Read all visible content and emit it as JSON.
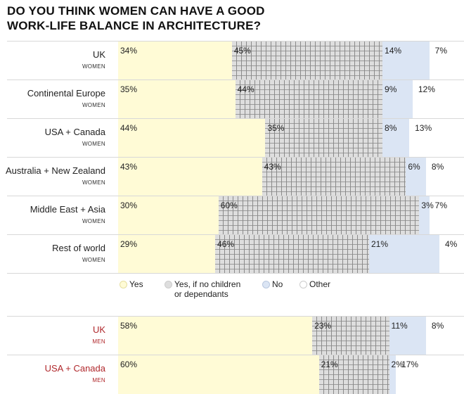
{
  "title_lines": [
    "DO YOU THINK WOMEN CAN HAVE A GOOD",
    "WORK-LIFE BALANCE IN ARCHITECTURE?"
  ],
  "chart_data": {
    "type": "bar",
    "orientation": "horizontal",
    "stacked": true,
    "title": "DO YOU THINK WOMEN CAN HAVE A GOOD WORK-LIFE BALANCE IN ARCHITECTURE?",
    "xlim": [
      0,
      100
    ],
    "legend": {
      "position": "bottom",
      "entries": [
        "Yes",
        "Yes, if no children or dependants",
        "No",
        "Other"
      ]
    },
    "series_names": [
      "Yes",
      "Yes, if no children or dependants",
      "No",
      "Other"
    ],
    "colors": {
      "yes": "#fffbd6",
      "conditional": "#dedede",
      "no": "#dbe5f4",
      "other": "#ffffff",
      "men_label": "#b0282c"
    },
    "groups": [
      {
        "rows": [
          {
            "category": "UK",
            "sub": "WOMEN",
            "values": [
              34,
              45,
              14,
              7
            ]
          },
          {
            "category": "Continental Europe",
            "sub": "WOMEN",
            "values": [
              35,
              44,
              9,
              12
            ]
          },
          {
            "category": "USA + Canada",
            "sub": "WOMEN",
            "values": [
              44,
              35,
              8,
              13
            ]
          },
          {
            "category": "Australia + New Zealand",
            "sub": "WOMEN",
            "values": [
              43,
              43,
              6,
              8
            ]
          },
          {
            "category": "Middle East + Asia",
            "sub": "WOMEN",
            "values": [
              30,
              60,
              3,
              7
            ]
          },
          {
            "category": "Rest of world",
            "sub": "WOMEN",
            "values": [
              29,
              46,
              21,
              4
            ]
          }
        ]
      },
      {
        "rows": [
          {
            "category": "UK",
            "sub": "MEN",
            "values": [
              58,
              23,
              11,
              8
            ]
          },
          {
            "category": "USA + Canada",
            "sub": "MEN",
            "values": [
              60,
              21,
              2,
              17
            ]
          }
        ]
      }
    ]
  },
  "legend_labels": [
    "Yes",
    "Yes, if no children\nor dependants",
    "No",
    "Other"
  ]
}
